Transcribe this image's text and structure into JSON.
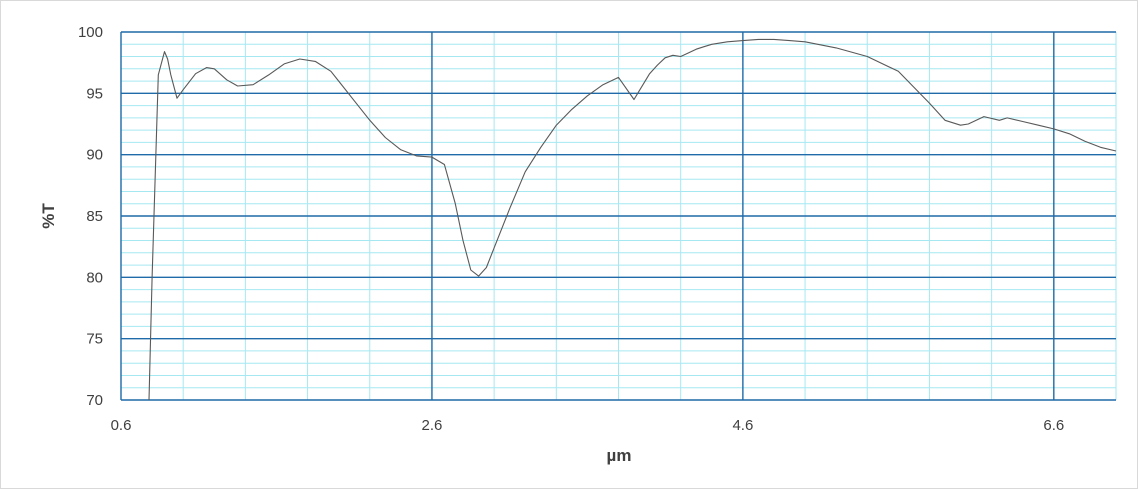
{
  "chart_data": {
    "type": "line",
    "title": "",
    "xlabel": "µm",
    "ylabel": "%T",
    "xlim": [
      0.6,
      7.0
    ],
    "ylim": [
      70,
      100
    ],
    "x_ticks": [
      0.6,
      2.6,
      4.6,
      6.6
    ],
    "x_tick_labels": [
      "0.6",
      "2.6",
      "4.6",
      "6.6"
    ],
    "y_ticks": [
      70,
      75,
      80,
      85,
      90,
      95,
      100
    ],
    "y_tick_labels": [
      "70",
      "75",
      "80",
      "85",
      "90",
      "95",
      "100"
    ],
    "grid": true,
    "legend": "none",
    "colors": {
      "line": "#595959",
      "major_grid": "#1f6aa8",
      "minor_grid": "#a6e8f2",
      "axis_text": "#404040"
    },
    "series": [
      {
        "x": [
          0.78,
          0.8,
          0.84,
          0.88,
          0.9,
          0.92,
          0.96,
          1.0,
          1.08,
          1.15,
          1.2,
          1.28,
          1.35,
          1.45,
          1.55,
          1.65,
          1.75,
          1.85,
          1.95,
          2.0,
          2.1,
          2.2,
          2.3,
          2.4,
          2.5,
          2.6,
          2.68,
          2.75,
          2.8,
          2.85,
          2.9,
          2.95,
          3.0,
          3.1,
          3.2,
          3.3,
          3.4,
          3.5,
          3.6,
          3.7,
          3.8,
          3.9,
          4.0,
          4.05,
          4.1,
          4.15,
          4.2,
          4.25,
          4.3,
          4.35,
          4.4,
          4.5,
          4.6,
          4.7,
          4.8,
          4.9,
          5.0,
          5.2,
          5.4,
          5.6,
          5.7,
          5.8,
          5.9,
          6.0,
          6.05,
          6.15,
          6.25,
          6.3,
          6.4,
          6.5,
          6.6,
          6.7,
          6.8,
          6.9,
          7.0
        ],
        "y": [
          70.0,
          80.0,
          96.5,
          98.4,
          97.8,
          96.5,
          94.6,
          95.3,
          96.6,
          97.1,
          97.0,
          96.1,
          95.6,
          95.7,
          96.5,
          97.4,
          97.8,
          97.6,
          96.8,
          96.0,
          94.4,
          92.8,
          91.4,
          90.4,
          89.9,
          89.8,
          89.2,
          86.0,
          83.0,
          80.6,
          80.1,
          80.8,
          82.4,
          85.6,
          88.6,
          90.6,
          92.4,
          93.7,
          94.8,
          95.7,
          96.3,
          94.5,
          96.6,
          97.3,
          97.9,
          98.1,
          98.0,
          98.3,
          98.6,
          98.8,
          99.0,
          99.2,
          99.3,
          99.4,
          99.4,
          99.3,
          99.2,
          98.7,
          98.0,
          96.8,
          95.5,
          94.2,
          92.8,
          92.4,
          92.5,
          93.1,
          92.8,
          93.0,
          92.7,
          92.4,
          92.1,
          91.7,
          91.1,
          90.6,
          90.3
        ]
      }
    ]
  }
}
